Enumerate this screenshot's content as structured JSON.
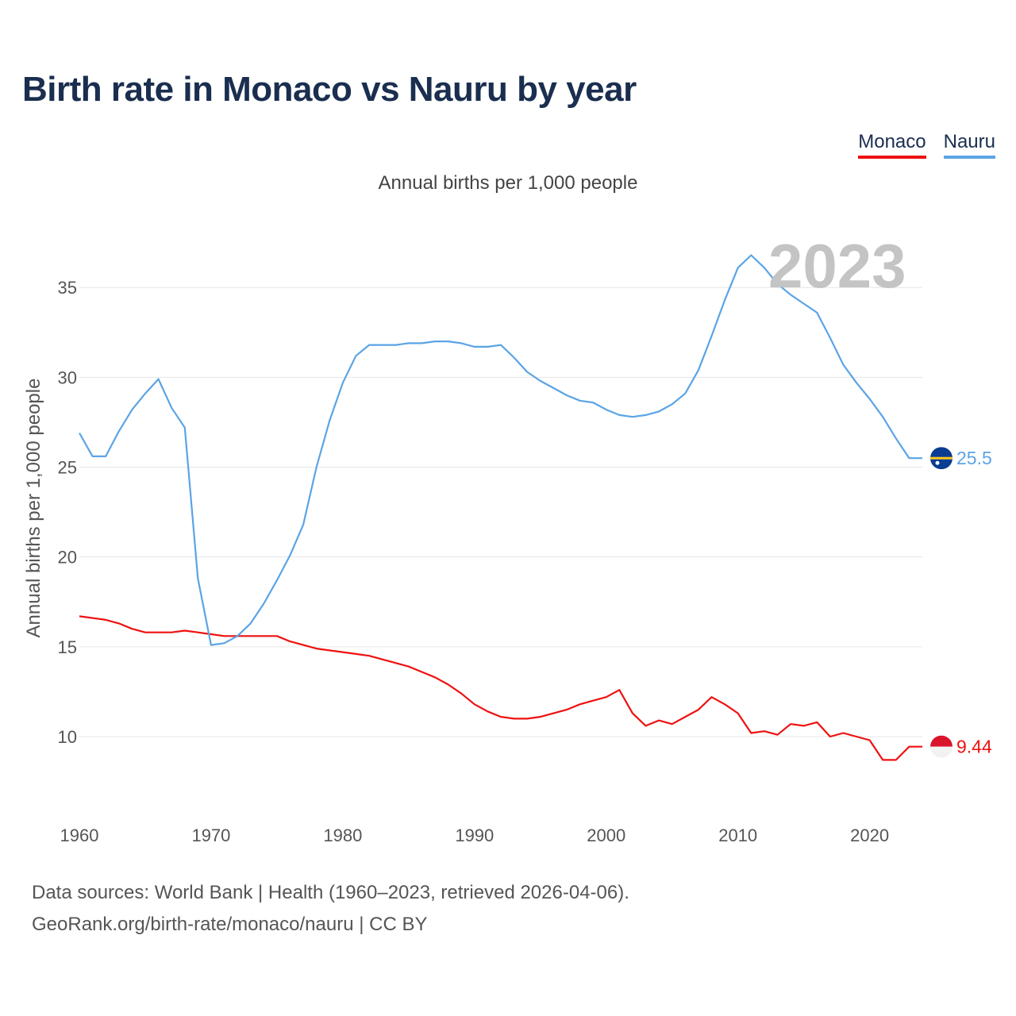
{
  "title": "Birth rate in Monaco vs Nauru by year",
  "subtitle": "Annual births per 1,000 people",
  "year_label": "2023",
  "legend": [
    {
      "name": "Monaco",
      "color": "#ee1111"
    },
    {
      "name": "Nauru",
      "color": "#5ba4e5"
    }
  ],
  "footer": {
    "line1": "Data sources: World Bank | Health (1960–2023, retrieved 2026-04-06).",
    "line2": "GeoRank.org/birth-rate/monaco/nauru | CC BY"
  },
  "chart_data": {
    "type": "line",
    "title": "Birth rate in Monaco vs Nauru by year",
    "xlabel": "",
    "ylabel": "Annual births per 1,000 people",
    "xlim": [
      1960,
      2024
    ],
    "ylim": [
      6.2,
      38.5
    ],
    "xticks": [
      1960,
      1970,
      1980,
      1990,
      2000,
      2010,
      2020
    ],
    "yticks": [
      10,
      15,
      20,
      25,
      30,
      35
    ],
    "grid": true,
    "x": [
      1960,
      1961,
      1962,
      1963,
      1964,
      1965,
      1966,
      1967,
      1968,
      1969,
      1970,
      1971,
      1972,
      1973,
      1974,
      1975,
      1976,
      1977,
      1978,
      1979,
      1980,
      1981,
      1982,
      1983,
      1984,
      1985,
      1986,
      1987,
      1988,
      1989,
      1990,
      1991,
      1992,
      1993,
      1994,
      1995,
      1996,
      1997,
      1998,
      1999,
      2000,
      2001,
      2002,
      2003,
      2004,
      2005,
      2006,
      2007,
      2008,
      2009,
      2010,
      2011,
      2012,
      2013,
      2014,
      2015,
      2016,
      2017,
      2018,
      2019,
      2020,
      2021,
      2022,
      2023
    ],
    "series": [
      {
        "name": "Monaco",
        "color": "#ee1111",
        "end_label": "9.44",
        "values": [
          16.7,
          16.6,
          16.5,
          16.3,
          16.0,
          15.8,
          15.8,
          15.8,
          15.9,
          15.8,
          15.7,
          15.6,
          15.6,
          15.6,
          15.6,
          15.6,
          15.3,
          15.1,
          14.9,
          14.8,
          14.7,
          14.6,
          14.5,
          14.3,
          14.1,
          13.9,
          13.6,
          13.3,
          12.9,
          12.4,
          11.8,
          11.4,
          11.1,
          11.0,
          11.0,
          11.1,
          11.3,
          11.5,
          11.8,
          12.0,
          12.2,
          12.6,
          11.3,
          10.6,
          10.9,
          10.7,
          11.1,
          11.5,
          12.2,
          11.8,
          11.3,
          10.2,
          10.3,
          10.1,
          10.7,
          10.6,
          10.8,
          10.0,
          10.2,
          10.0,
          9.8,
          8.7,
          8.7,
          9.44
        ]
      },
      {
        "name": "Nauru",
        "color": "#5ba4e5",
        "end_label": "25.5",
        "values": [
          26.9,
          25.6,
          25.6,
          27.0,
          28.2,
          29.1,
          29.9,
          28.3,
          27.2,
          18.8,
          15.1,
          15.2,
          15.6,
          16.3,
          17.4,
          18.7,
          20.1,
          21.8,
          25.0,
          27.6,
          29.7,
          31.2,
          31.8,
          31.8,
          31.8,
          31.9,
          31.9,
          32.0,
          32.0,
          31.9,
          31.7,
          31.7,
          31.8,
          31.1,
          30.3,
          29.8,
          29.4,
          29.0,
          28.7,
          28.6,
          28.2,
          27.9,
          27.8,
          27.9,
          28.1,
          28.5,
          29.1,
          30.4,
          32.3,
          34.3,
          36.1,
          36.8,
          36.1,
          35.2,
          34.6,
          34.1,
          33.6,
          32.2,
          30.7,
          29.7,
          28.8,
          27.8,
          26.6,
          25.5
        ]
      }
    ]
  }
}
